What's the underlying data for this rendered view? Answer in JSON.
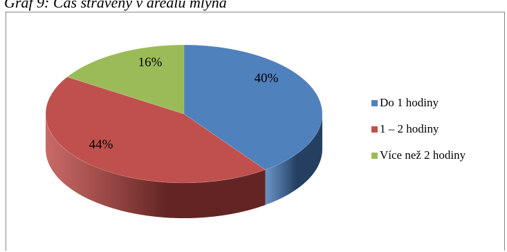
{
  "caption": "Graf 9: Čas strávený v areálu mlýna",
  "chart_data": {
    "type": "pie",
    "title": "",
    "three_d": true,
    "start_angle_deg": 0,
    "direction": "clockwise",
    "legend_position": "right",
    "categories": [
      "Do 1 hodiny",
      "1 – 2 hodiny",
      "Více než 2 hodiny"
    ],
    "values": [
      40,
      44,
      16
    ],
    "data_labels": [
      "40%",
      "44%",
      "16%"
    ],
    "colors": [
      "#4F81BD",
      "#C0504D",
      "#9BBB59"
    ],
    "side_colors": [
      "#243F60",
      "#632523",
      "#4F6228"
    ]
  }
}
